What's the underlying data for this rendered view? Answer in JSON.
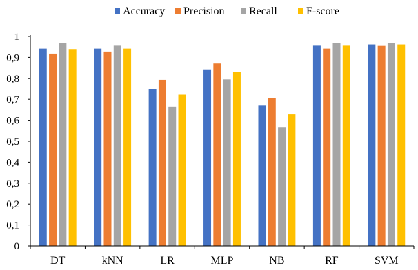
{
  "chart_data": {
    "type": "bar",
    "title": "",
    "xlabel": "",
    "ylabel": "",
    "categories": [
      "DT",
      "kNN",
      "LR",
      "MLP",
      "NB",
      "RF",
      "SVM"
    ],
    "series": [
      {
        "name": "Accuracy",
        "color": "#4472C4",
        "values": [
          0.942,
          0.942,
          0.75,
          0.843,
          0.67,
          0.956,
          0.962
        ]
      },
      {
        "name": "Precision",
        "color": "#ED7D31",
        "values": [
          0.918,
          0.928,
          0.793,
          0.871,
          0.707,
          0.942,
          0.955
        ]
      },
      {
        "name": "Recall",
        "color": "#A5A5A5",
        "values": [
          0.97,
          0.956,
          0.665,
          0.795,
          0.565,
          0.97,
          0.97
        ]
      },
      {
        "name": "F-score",
        "color": "#FFC000",
        "values": [
          0.94,
          0.942,
          0.722,
          0.832,
          0.628,
          0.956,
          0.962
        ]
      }
    ],
    "ylim": [
      0,
      1
    ],
    "yticks": [
      "0",
      "0,1",
      "0,2",
      "0,3",
      "0,4",
      "0,5",
      "0,6",
      "0,7",
      "0,8",
      "0,9",
      "1"
    ],
    "ytick_values": [
      0,
      0.1,
      0.2,
      0.3,
      0.4,
      0.5,
      0.6,
      0.7,
      0.8,
      0.9,
      1
    ],
    "grid": false,
    "legend_position": "top-center"
  }
}
